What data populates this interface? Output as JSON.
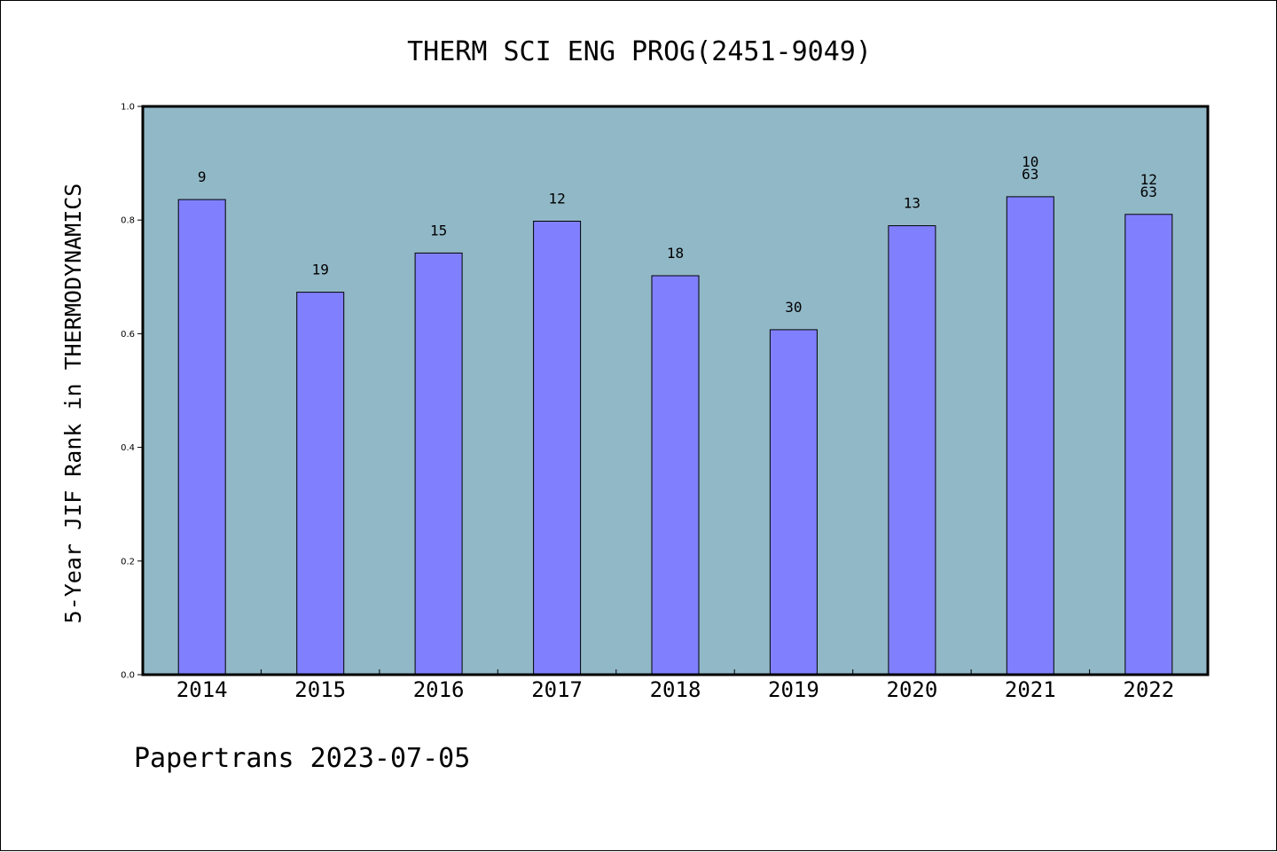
{
  "chart_data": {
    "type": "bar",
    "title": "THERM SCI ENG PROG(2451-9049)",
    "xlabel": "",
    "ylabel": "5-Year JIF Rank in THERMODYNAMICS",
    "categories": [
      "2014",
      "2015",
      "2016",
      "2017",
      "2018",
      "2019",
      "2020",
      "2021",
      "2022"
    ],
    "values": [
      0.836,
      0.673,
      0.742,
      0.798,
      0.702,
      0.607,
      0.79,
      0.841,
      0.81
    ],
    "bar_labels": [
      [
        "9"
      ],
      [
        "19"
      ],
      [
        "15"
      ],
      [
        "12"
      ],
      [
        "18"
      ],
      [
        "30"
      ],
      [
        "13"
      ],
      [
        "10",
        "63"
      ],
      [
        "12",
        "63"
      ]
    ],
    "ylim": [
      0,
      1.0
    ],
    "yticks": [
      "0.0",
      "0.2",
      "0.4",
      "0.6",
      "0.8",
      "1.0"
    ],
    "grid": false,
    "legend": "none",
    "colors": {
      "plot_background": "#91b8c7",
      "bar_fill": "#8080ff",
      "bar_stroke": "#000000"
    }
  },
  "footer": {
    "text": "Papertrans 2023-07-05"
  }
}
